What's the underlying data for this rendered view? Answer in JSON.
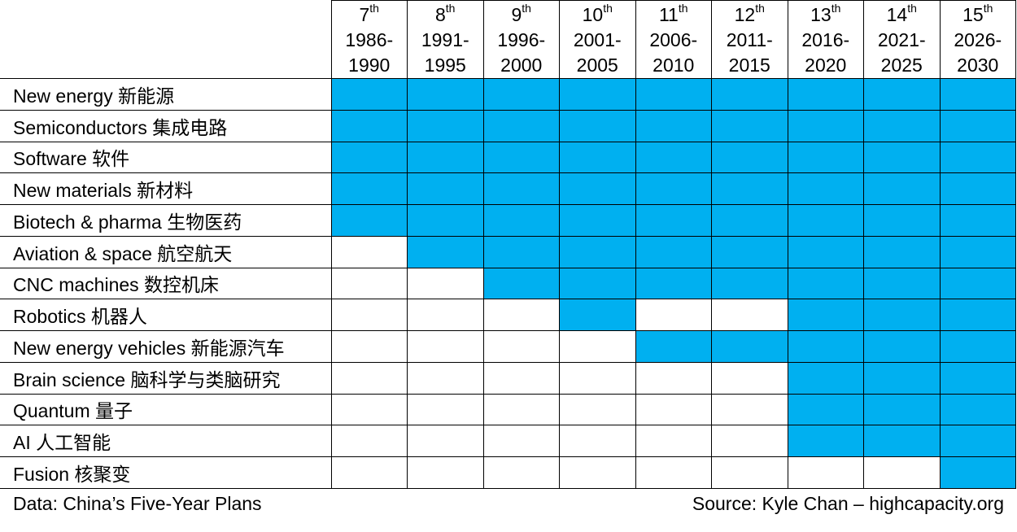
{
  "chart_data": {
    "type": "table",
    "columns": [
      {
        "plan": "7",
        "suffix": "th",
        "years_start": "1986-",
        "years_end": "1990"
      },
      {
        "plan": "8",
        "suffix": "th",
        "years_start": "1991-",
        "years_end": "1995"
      },
      {
        "plan": "9",
        "suffix": "th",
        "years_start": "1996-",
        "years_end": "2000"
      },
      {
        "plan": "10",
        "suffix": "th",
        "years_start": "2001-",
        "years_end": "2005"
      },
      {
        "plan": "11",
        "suffix": "th",
        "years_start": "2006-",
        "years_end": "2010"
      },
      {
        "plan": "12",
        "suffix": "th",
        "years_start": "2011-",
        "years_end": "2015"
      },
      {
        "plan": "13",
        "suffix": "th",
        "years_start": "2016-",
        "years_end": "2020"
      },
      {
        "plan": "14",
        "suffix": "th",
        "years_start": "2021-",
        "years_end": "2025"
      },
      {
        "plan": "15",
        "suffix": "th",
        "years_start": "2026-",
        "years_end": "2030"
      }
    ],
    "rows": [
      {
        "label": "New energy 新能源",
        "included": [
          1,
          1,
          1,
          1,
          1,
          1,
          1,
          1,
          1
        ]
      },
      {
        "label": "Semiconductors 集成电路",
        "included": [
          1,
          1,
          1,
          1,
          1,
          1,
          1,
          1,
          1
        ]
      },
      {
        "label": "Software 软件",
        "included": [
          1,
          1,
          1,
          1,
          1,
          1,
          1,
          1,
          1
        ]
      },
      {
        "label": "New materials 新材料",
        "included": [
          1,
          1,
          1,
          1,
          1,
          1,
          1,
          1,
          1
        ]
      },
      {
        "label": "Biotech & pharma 生物医药",
        "included": [
          1,
          1,
          1,
          1,
          1,
          1,
          1,
          1,
          1
        ]
      },
      {
        "label": "Aviation & space 航空航天",
        "included": [
          0,
          1,
          1,
          1,
          1,
          1,
          1,
          1,
          1
        ]
      },
      {
        "label": "CNC machines 数控机床",
        "included": [
          0,
          0,
          1,
          1,
          1,
          1,
          1,
          1,
          1
        ]
      },
      {
        "label": "Robotics 机器人",
        "included": [
          0,
          0,
          0,
          1,
          0,
          0,
          1,
          1,
          1
        ]
      },
      {
        "label": "New energy vehicles 新能源汽车",
        "included": [
          0,
          0,
          0,
          0,
          1,
          1,
          1,
          1,
          1
        ]
      },
      {
        "label": "Brain science 脑科学与类脑研究",
        "included": [
          0,
          0,
          0,
          0,
          0,
          0,
          1,
          1,
          1
        ]
      },
      {
        "label": "Quantum 量子",
        "included": [
          0,
          0,
          0,
          0,
          0,
          0,
          1,
          1,
          1
        ]
      },
      {
        "label": "AI 人工智能",
        "included": [
          0,
          0,
          0,
          0,
          0,
          0,
          1,
          1,
          1
        ]
      },
      {
        "label": "Fusion 核聚变",
        "included": [
          0,
          0,
          0,
          0,
          0,
          0,
          0,
          0,
          1
        ]
      }
    ],
    "highlight_color": "#00b0f0"
  },
  "footer": {
    "left": "Data: China’s Five-Year Plans",
    "right": "Source: Kyle Chan – highcapacity.org"
  }
}
